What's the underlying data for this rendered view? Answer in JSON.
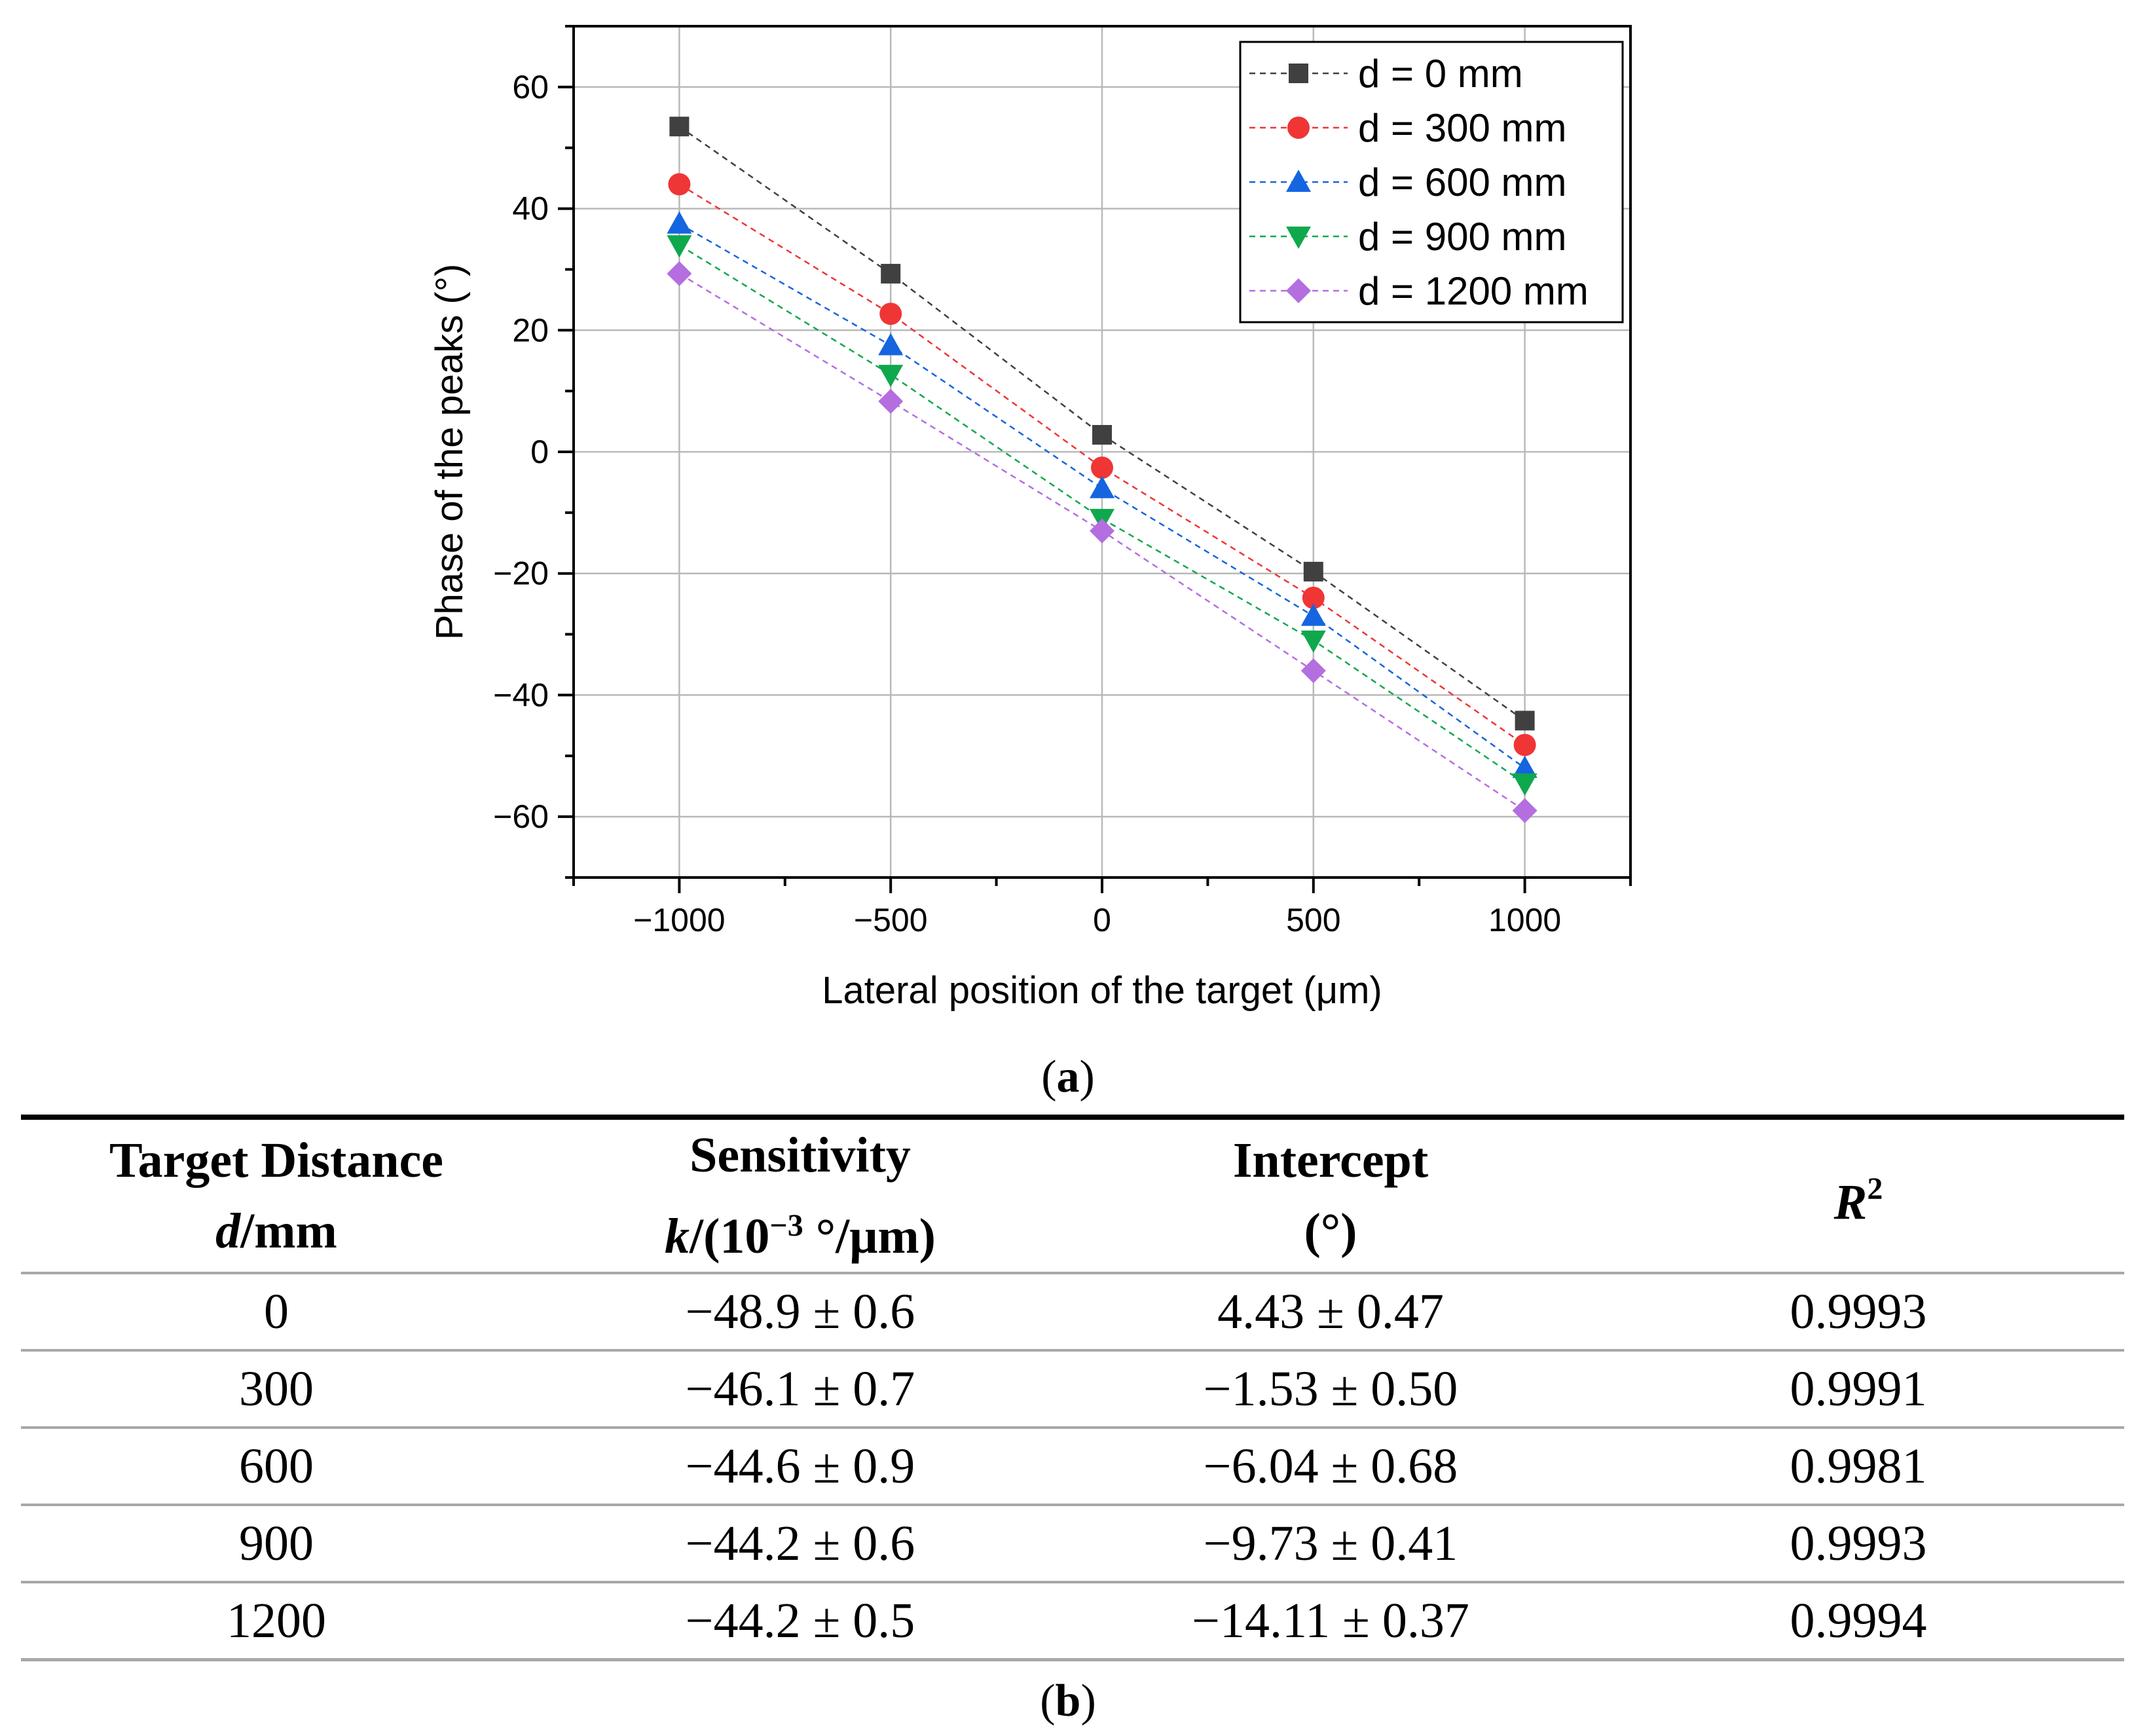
{
  "chart_data": {
    "type": "line",
    "xlabel": "Lateral position of the target (μm)",
    "ylabel": "Phase of the peaks (°)",
    "xlim": [
      -1250,
      1250
    ],
    "ylim": [
      -70,
      70
    ],
    "x": [
      -1000,
      -500,
      0,
      500,
      1000
    ],
    "x_ticks": [
      -1000,
      -500,
      0,
      500,
      1000
    ],
    "x_tick_labels": [
      "−1000",
      "−500",
      "0",
      "500",
      "1000"
    ],
    "y_ticks": [
      60,
      40,
      20,
      0,
      -20,
      -40,
      -60
    ],
    "y_tick_labels": [
      "60",
      "40",
      "20",
      "0",
      "−20",
      "−40",
      "−60"
    ],
    "grid": true,
    "legend_position": "top-right",
    "series": [
      {
        "name": "d = 0 mm",
        "color": "#404040",
        "marker": "square",
        "values": [
          53.5,
          29.3,
          2.8,
          -19.7,
          -44.2
        ]
      },
      {
        "name": "d = 300 mm",
        "color": "#f03535",
        "marker": "circle",
        "values": [
          44,
          22.7,
          -2.6,
          -24,
          -48.2
        ]
      },
      {
        "name": "d = 600 mm",
        "color": "#1565e0",
        "marker": "triangle-up",
        "values": [
          37.5,
          17.5,
          -6,
          -27,
          -52
        ]
      },
      {
        "name": "d = 900 mm",
        "color": "#0fa84c",
        "marker": "triangle-down",
        "values": [
          34,
          12.7,
          -11,
          -31,
          -54.5
        ]
      },
      {
        "name": "d = 1200 mm",
        "color": "#b46ee0",
        "marker": "diamond",
        "values": [
          29.3,
          8.3,
          -13,
          -36,
          -59
        ]
      }
    ]
  },
  "caption_a": {
    "open": "(",
    "letter": "a",
    "close": ")"
  },
  "caption_b": {
    "open": "(",
    "letter": "b",
    "close": ")"
  },
  "table": {
    "headers": {
      "col1_line1": "Target Distance",
      "col1_var": "d",
      "col1_unit": "/mm",
      "col2_line1": "Sensitivity",
      "col2_var": "k",
      "col2_pre": "/(10",
      "col2_sup": "−3",
      "col2_post": " °/μm)",
      "col3_line1": "Intercept",
      "col3_line2": "(°)",
      "col4_var": "R",
      "col4_sup": "2"
    },
    "rows": [
      {
        "distance": "0",
        "sensitivity": "−48.9 ± 0.6",
        "intercept": "4.43 ± 0.47",
        "r2": "0.9993"
      },
      {
        "distance": "300",
        "sensitivity": "−46.1 ± 0.7",
        "intercept": "−1.53 ± 0.50",
        "r2": "0.9991"
      },
      {
        "distance": "600",
        "sensitivity": "−44.6 ± 0.9",
        "intercept": "−6.04 ± 0.68",
        "r2": "0.9981"
      },
      {
        "distance": "900",
        "sensitivity": "−44.2 ± 0.6",
        "intercept": "−9.73 ± 0.41",
        "r2": "0.9993"
      },
      {
        "distance": "1200",
        "sensitivity": "−44.2 ± 0.5",
        "intercept": "−14.11 ± 0.37",
        "r2": "0.9994"
      }
    ]
  }
}
